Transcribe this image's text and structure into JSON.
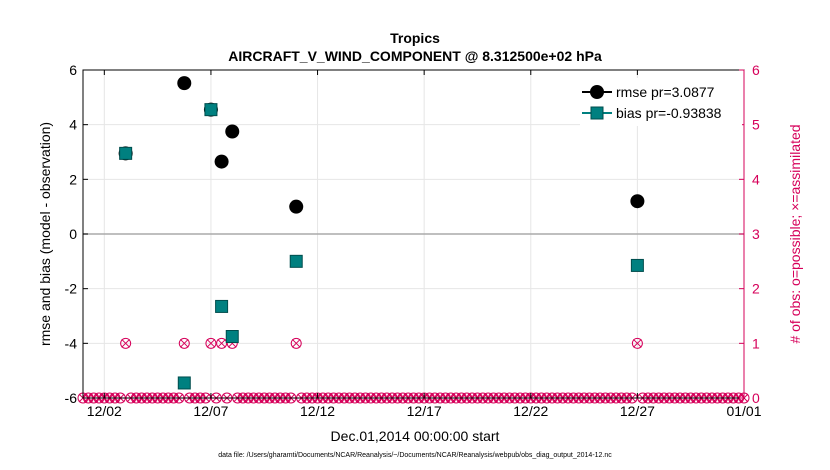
{
  "chart_data": {
    "type": "scatter",
    "title": "Tropics",
    "subtitle": "AIRCRAFT_V_WIND_COMPONENT @ 8.312500e+02 hPa",
    "xlabel": "Dec.01,2014 00:00:00 start",
    "ylabel": "rmse and bias (model - observation)",
    "y2label": "# of obs: o=possible; ×=assimilated",
    "xlim": [
      0,
      31
    ],
    "ylim": [
      -6,
      6
    ],
    "y2lim": [
      0,
      6
    ],
    "x_ticks": [
      1,
      6,
      11,
      16,
      21,
      26,
      31
    ],
    "x_tick_labels": [
      "12/02",
      "12/07",
      "12/12",
      "12/17",
      "12/22",
      "12/27",
      "01/01"
    ],
    "y_ticks": [
      -6,
      -4,
      -2,
      0,
      2,
      4,
      6
    ],
    "y_tick_labels": [
      "-6",
      "-4",
      "-2",
      "0",
      "2",
      "4",
      "6"
    ],
    "y2_ticks": [
      0,
      1,
      2,
      3,
      4,
      5,
      6
    ],
    "y2_tick_labels": [
      "0",
      "1",
      "2",
      "3",
      "4",
      "5",
      "6"
    ],
    "grid": true,
    "legend_position": "top-right",
    "series": [
      {
        "name": "rmse pr=3.0877",
        "color": "#000000",
        "marker": "circle",
        "x": [
          2.0,
          4.75,
          6.0,
          6.5,
          7.0,
          10.0,
          26.0
        ],
        "values": [
          2.95,
          5.52,
          4.55,
          2.65,
          3.75,
          1.0,
          1.2
        ]
      },
      {
        "name": "bias pr=-0.93838",
        "color": "#008080",
        "marker": "square",
        "x": [
          2.0,
          4.75,
          6.0,
          6.5,
          7.0,
          10.0,
          26.0
        ],
        "values": [
          2.95,
          -5.45,
          4.55,
          -2.65,
          -3.75,
          -1.0,
          -1.15
        ]
      }
    ],
    "obs_counts": {
      "color": "#d6005a",
      "sample_spacing": 0.25,
      "nonzero": [
        {
          "x": 2.0,
          "possible": 1,
          "assimilated": 1
        },
        {
          "x": 4.75,
          "possible": 1,
          "assimilated": 1
        },
        {
          "x": 6.0,
          "possible": 1,
          "assimilated": 1
        },
        {
          "x": 6.5,
          "possible": 1,
          "assimilated": 1
        },
        {
          "x": 7.0,
          "possible": 1,
          "assimilated": 1
        },
        {
          "x": 10.0,
          "possible": 1,
          "assimilated": 1
        },
        {
          "x": 26.0,
          "possible": 1,
          "assimilated": 1
        }
      ]
    }
  },
  "footnote": "data file: /Users/gharamti/Documents/NCAR/Reanalysis/~/Documents/NCAR/Reanalysis/webpub/obs_diag_output_2014-12.nc"
}
